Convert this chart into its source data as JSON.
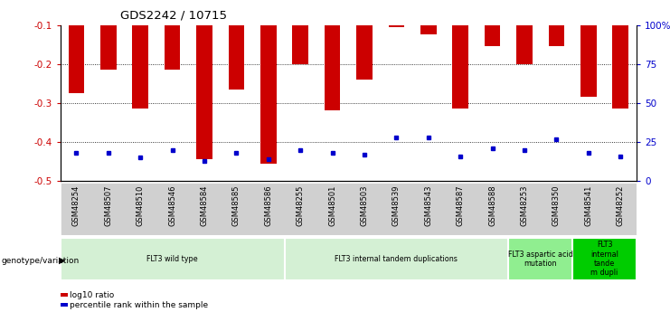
{
  "title": "GDS2242 / 10715",
  "samples": [
    "GSM48254",
    "GSM48507",
    "GSM48510",
    "GSM48546",
    "GSM48584",
    "GSM48585",
    "GSM48586",
    "GSM48255",
    "GSM48501",
    "GSM48503",
    "GSM48539",
    "GSM48543",
    "GSM48587",
    "GSM48588",
    "GSM48253",
    "GSM48350",
    "GSM48541",
    "GSM48252"
  ],
  "log10_ratio": [
    -0.275,
    -0.215,
    -0.315,
    -0.215,
    -0.445,
    -0.265,
    -0.455,
    -0.2,
    -0.32,
    -0.24,
    -0.105,
    -0.125,
    -0.315,
    -0.155,
    -0.2,
    -0.155,
    -0.285,
    -0.315
  ],
  "percentile_rank_pct": [
    18,
    18,
    15,
    20,
    13,
    18,
    14,
    20,
    18,
    17,
    28,
    28,
    16,
    21,
    20,
    27,
    18,
    16
  ],
  "bar_color": "#cc0000",
  "marker_color": "#0000cc",
  "background_color": "#ffffff",
  "groups": [
    {
      "label": "FLT3 wild type",
      "start": 0,
      "end": 7,
      "color": "#d4f0d4"
    },
    {
      "label": "FLT3 internal tandem duplications",
      "start": 7,
      "end": 14,
      "color": "#d4f0d4"
    },
    {
      "label": "FLT3 aspartic acid\nmutation",
      "start": 14,
      "end": 16,
      "color": "#90ee90"
    },
    {
      "label": "FLT3\ninternal\ntande\nm dupli",
      "start": 16,
      "end": 18,
      "color": "#00cc00"
    }
  ],
  "ylim_left": [
    -0.5,
    -0.1
  ],
  "yticks_left": [
    -0.5,
    -0.4,
    -0.3,
    -0.2,
    -0.1
  ],
  "yticks_right": [
    0,
    25,
    50,
    75,
    100
  ],
  "yticks_right_labels": [
    "0",
    "25",
    "50",
    "75",
    "100%"
  ],
  "ylabel_left_color": "#cc0000",
  "ylabel_right_color": "#0000cc",
  "legend_items": [
    {
      "label": "log10 ratio",
      "color": "#cc0000"
    },
    {
      "label": "percentile rank within the sample",
      "color": "#0000cc"
    }
  ],
  "bar_width": 0.5
}
